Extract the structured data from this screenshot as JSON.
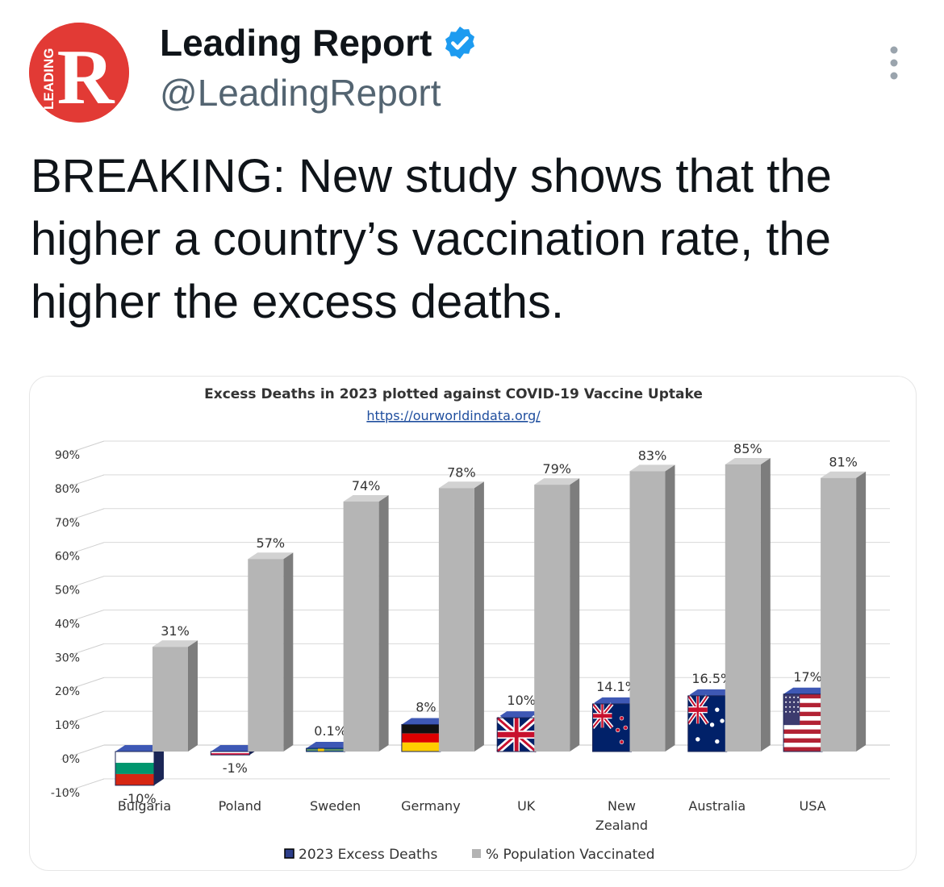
{
  "tweet": {
    "display_name": "Leading Report",
    "handle": "@LeadingReport",
    "text": "BREAKING: New study shows that the higher a country’s vaccination rate, the higher the excess deaths.",
    "avatar_letter": "R",
    "avatar_side_text": "LEADING",
    "avatar_color": "#e23a35",
    "verified_color": "#1d9bf0",
    "icons": {
      "verified": "verified-badge-icon",
      "more": "more-options-icon"
    }
  },
  "chart_data": {
    "type": "bar",
    "title": "Excess Deaths in 2023 plotted against COVID-19 Vaccine Uptake",
    "subtitle": "https://ourworldindata.org/",
    "categories": [
      [
        "Bulgaria"
      ],
      [
        "Poland"
      ],
      [
        "Sweden"
      ],
      [
        "Germany"
      ],
      [
        "UK"
      ],
      [
        "New",
        "Zealand"
      ],
      [
        "Australia"
      ],
      [
        "USA"
      ]
    ],
    "series": [
      {
        "name": "2023 Excess Deaths",
        "values": [
          -10,
          -1,
          0.1,
          8,
          10,
          14.1,
          16.5,
          17
        ],
        "labels": [
          "-10%",
          "-1%",
          "0.1%",
          "8%",
          "10%",
          "14.1%",
          "16.5%",
          "17%"
        ],
        "color": "#2d3e8a"
      },
      {
        "name": "% Population Vaccinated",
        "values": [
          31,
          57,
          74,
          78,
          79,
          83,
          85,
          81
        ],
        "labels": [
          "31%",
          "57%",
          "74%",
          "78%",
          "79%",
          "83%",
          "85%",
          "81%"
        ],
        "color": "#b3b3b3"
      }
    ],
    "y_ticks": [
      "-10%",
      "0%",
      "10%",
      "20%",
      "30%",
      "40%",
      "50%",
      "60%",
      "70%",
      "80%",
      "90%"
    ],
    "ylim": [
      -10,
      90
    ],
    "grid": true,
    "legend": "bottom",
    "flags": [
      "bulgaria",
      "poland",
      "sweden",
      "germany",
      "uk",
      "new-zealand",
      "australia",
      "usa"
    ]
  }
}
